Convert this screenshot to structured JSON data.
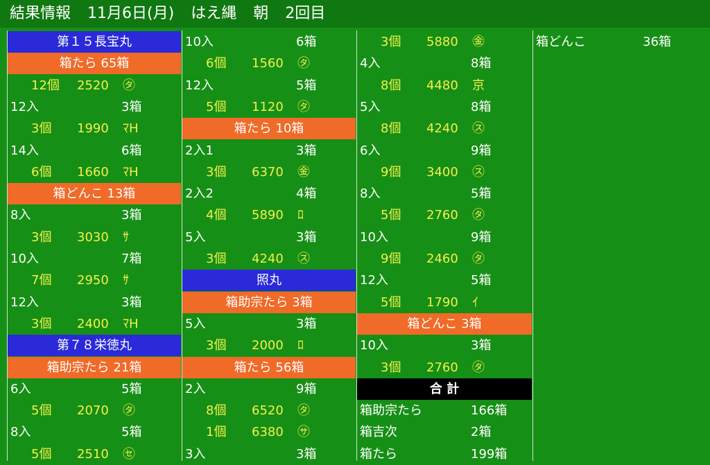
{
  "header": {
    "title": "結果情報",
    "date": "11月6日(月)",
    "method": "はえ縄",
    "session": "朝",
    "round": "2回目"
  },
  "columns": [
    {
      "rows": [
        {
          "kind": "ship",
          "label": "第１５長宝丸"
        },
        {
          "kind": "cat",
          "label": "箱たら 65箱"
        },
        {
          "kind": "detail",
          "count": "12個",
          "price": "2520",
          "mark": "㋟"
        },
        {
          "kind": "size",
          "size": "12入",
          "boxes": "3箱"
        },
        {
          "kind": "detail",
          "count": "3個",
          "price": "1990",
          "mark": "ﾏH"
        },
        {
          "kind": "size",
          "size": "14入",
          "boxes": "6箱"
        },
        {
          "kind": "detail",
          "count": "6個",
          "price": "1660",
          "mark": "ﾏH"
        },
        {
          "kind": "cat",
          "label": "箱どんこ 13箱"
        },
        {
          "kind": "size",
          "size": "8入",
          "boxes": "3箱"
        },
        {
          "kind": "detail",
          "count": "3個",
          "price": "3030",
          "mark": "ｻ"
        },
        {
          "kind": "size",
          "size": "10入",
          "boxes": "7箱"
        },
        {
          "kind": "detail",
          "count": "7個",
          "price": "2950",
          "mark": "ｻ"
        },
        {
          "kind": "size",
          "size": "12入",
          "boxes": "3箱"
        },
        {
          "kind": "detail",
          "count": "3個",
          "price": "2400",
          "mark": "ﾏH"
        },
        {
          "kind": "ship",
          "label": "第７８栄徳丸"
        },
        {
          "kind": "cat",
          "label": "箱助宗たら 21箱"
        },
        {
          "kind": "size",
          "size": "6入",
          "boxes": "5箱"
        },
        {
          "kind": "detail",
          "count": "5個",
          "price": "2070",
          "mark": "㋟"
        },
        {
          "kind": "size",
          "size": "8入",
          "boxes": "5箱"
        },
        {
          "kind": "detail",
          "count": "5個",
          "price": "2510",
          "mark": "㋝"
        }
      ]
    },
    {
      "rows": [
        {
          "kind": "size",
          "size": "10入",
          "boxes": "6箱"
        },
        {
          "kind": "detail",
          "count": "6個",
          "price": "1560",
          "mark": "㋟"
        },
        {
          "kind": "size",
          "size": "12入",
          "boxes": "5箱"
        },
        {
          "kind": "detail",
          "count": "5個",
          "price": "1120",
          "mark": "㋟"
        },
        {
          "kind": "cat",
          "label": "箱たら 10箱"
        },
        {
          "kind": "size",
          "size": "2入1",
          "boxes": "3箱"
        },
        {
          "kind": "detail",
          "count": "3個",
          "price": "6370",
          "mark": "㊎"
        },
        {
          "kind": "size",
          "size": "2入2",
          "boxes": "4箱"
        },
        {
          "kind": "detail",
          "count": "4個",
          "price": "5890",
          "mark": "ﾛ"
        },
        {
          "kind": "size",
          "size": "5入",
          "boxes": "3箱"
        },
        {
          "kind": "detail",
          "count": "3個",
          "price": "4240",
          "mark": "㋜"
        },
        {
          "kind": "ship",
          "label": "照丸"
        },
        {
          "kind": "cat",
          "label": "箱助宗たら 3箱"
        },
        {
          "kind": "size",
          "size": "5入",
          "boxes": "3箱"
        },
        {
          "kind": "detail",
          "count": "3個",
          "price": "2000",
          "mark": "ﾛ"
        },
        {
          "kind": "cat",
          "label": "箱たら 56箱"
        },
        {
          "kind": "size",
          "size": "2入",
          "boxes": "9箱"
        },
        {
          "kind": "detail",
          "count": "8個",
          "price": "6520",
          "mark": "㋟"
        },
        {
          "kind": "detail",
          "count": "1個",
          "price": "6380",
          "mark": "㋚"
        },
        {
          "kind": "size",
          "size": "3入",
          "boxes": "3箱"
        }
      ]
    },
    {
      "rows": [
        {
          "kind": "detail",
          "count": "3個",
          "price": "5880",
          "mark": "㊎"
        },
        {
          "kind": "size",
          "size": "4入",
          "boxes": "8箱"
        },
        {
          "kind": "detail",
          "count": "8個",
          "price": "4480",
          "mark": "京"
        },
        {
          "kind": "size",
          "size": "5入",
          "boxes": "8箱"
        },
        {
          "kind": "detail",
          "count": "8個",
          "price": "4240",
          "mark": "㋜"
        },
        {
          "kind": "size",
          "size": "6入",
          "boxes": "9箱"
        },
        {
          "kind": "detail",
          "count": "9個",
          "price": "3400",
          "mark": "㋜"
        },
        {
          "kind": "size",
          "size": "8入",
          "boxes": "5箱"
        },
        {
          "kind": "detail",
          "count": "5個",
          "price": "2760",
          "mark": "㋟"
        },
        {
          "kind": "size",
          "size": "10入",
          "boxes": "9箱"
        },
        {
          "kind": "detail",
          "count": "9個",
          "price": "2460",
          "mark": "㋟"
        },
        {
          "kind": "size",
          "size": "12入",
          "boxes": "5箱"
        },
        {
          "kind": "detail",
          "count": "5個",
          "price": "1790",
          "mark": "ｲ"
        },
        {
          "kind": "cat",
          "label": "箱どんこ 3箱"
        },
        {
          "kind": "size",
          "size": "10入",
          "boxes": "3箱"
        },
        {
          "kind": "detail",
          "count": "3個",
          "price": "2760",
          "mark": "㋟"
        },
        {
          "kind": "total_header",
          "label": "合 計"
        },
        {
          "kind": "total",
          "size": "箱助宗たら",
          "boxes": "166箱"
        },
        {
          "kind": "total",
          "size": "箱吉次",
          "boxes": "2箱"
        },
        {
          "kind": "total",
          "size": "箱たら",
          "boxes": "199箱"
        }
      ]
    },
    {
      "rows": [
        {
          "kind": "total",
          "size": "箱どんこ",
          "boxes": "36箱"
        }
      ]
    }
  ]
}
